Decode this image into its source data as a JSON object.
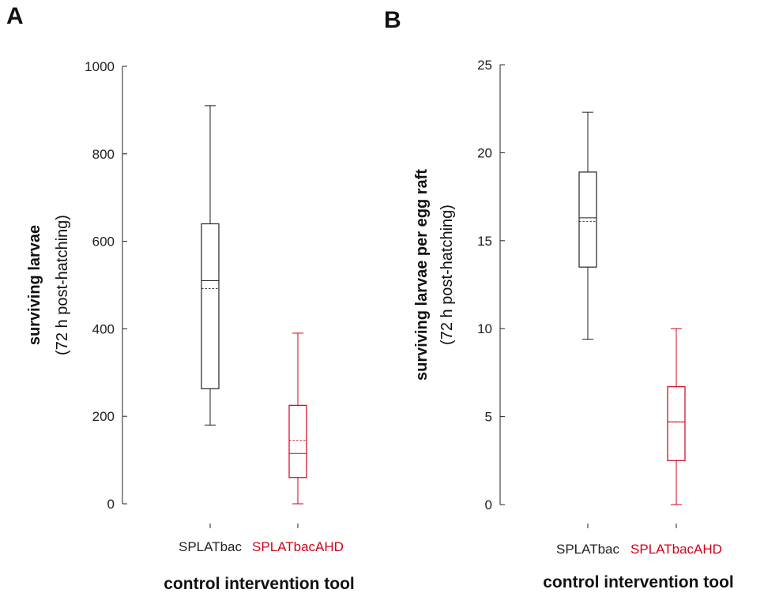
{
  "chart_data": [
    {
      "type": "box",
      "panel_label": "A",
      "ylabel": "surviving larvae",
      "ylabel_sub": "(72 h post-hatching)",
      "xlabel": "control intervention tool",
      "ylim": [
        0,
        1000
      ],
      "yticks": [
        0,
        200,
        400,
        600,
        800,
        1000
      ],
      "grid": false,
      "categories": [
        {
          "name": "SPLATbac",
          "color": "#222222",
          "whisker_low": 180,
          "q1": 263,
          "median": 510,
          "mean": 492,
          "q3": 640,
          "whisker_high": 910
        },
        {
          "name": "SPLATbacAHD",
          "color": "#d0021b",
          "whisker_low": 0,
          "q1": 60,
          "median": 115,
          "mean": 145,
          "q3": 225,
          "whisker_high": 390
        }
      ]
    },
    {
      "type": "box",
      "panel_label": "B",
      "ylabel": "surviving larvae per egg raft",
      "ylabel_sub": "(72 h post-hatching)",
      "xlabel": "control intervention tool",
      "ylim": [
        0,
        25
      ],
      "yticks": [
        0,
        5,
        10,
        15,
        20,
        25
      ],
      "grid": false,
      "categories": [
        {
          "name": "SPLATbac",
          "color": "#222222",
          "whisker_low": 9.4,
          "q1": 13.5,
          "median": 16.3,
          "mean": 16.1,
          "q3": 18.9,
          "whisker_high": 22.3
        },
        {
          "name": "SPLATbacAHD",
          "color": "#d0021b",
          "whisker_low": 0,
          "q1": 2.5,
          "median": 4.7,
          "mean": 4.7,
          "q3": 6.7,
          "whisker_high": 10.0
        }
      ]
    }
  ]
}
